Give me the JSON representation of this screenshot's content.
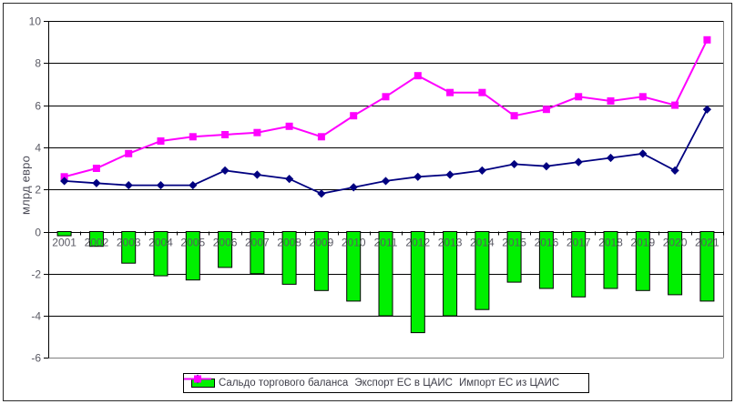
{
  "chart_data": {
    "type": "combo",
    "title": "",
    "ylabel": "млрд евро",
    "xlabel": "",
    "ylim": [
      -6,
      10
    ],
    "ytick_step": 2,
    "grid": true,
    "legend_position": "bottom",
    "categories": [
      "2001",
      "2002",
      "2003",
      "2004",
      "2005",
      "2006",
      "2007",
      "2008",
      "2009",
      "2010",
      "2011",
      "2012",
      "2013",
      "2014",
      "2015",
      "2016",
      "2017",
      "2018",
      "2019",
      "2020",
      "2021"
    ],
    "series": [
      {
        "name": "Сальдо торгового баланса",
        "type": "bar",
        "color": "#00f000",
        "values": [
          -0.2,
          -0.7,
          -1.5,
          -2.1,
          -2.3,
          -1.7,
          -2.0,
          -2.5,
          -2.8,
          -3.3,
          -4.0,
          -4.8,
          -4.0,
          -3.7,
          -2.4,
          -2.7,
          -3.1,
          -2.7,
          -2.8,
          -3.0,
          -3.3
        ]
      },
      {
        "name": "Экспорт ЕС в ЦАИС",
        "type": "line",
        "marker": "diamond",
        "color": "#000080",
        "values": [
          2.4,
          2.3,
          2.2,
          2.2,
          2.2,
          2.9,
          2.7,
          2.5,
          1.8,
          2.1,
          2.4,
          2.6,
          2.7,
          2.9,
          3.2,
          3.1,
          3.3,
          3.5,
          3.7,
          2.9,
          5.8
        ]
      },
      {
        "name": "Импорт ЕС из ЦАИС",
        "type": "line",
        "marker": "square",
        "color": "#ff00ff",
        "values": [
          2.6,
          3.0,
          3.7,
          4.3,
          4.5,
          4.6,
          4.7,
          5.0,
          4.5,
          5.5,
          6.4,
          7.4,
          6.6,
          6.6,
          5.5,
          5.8,
          6.4,
          6.2,
          6.4,
          6.0,
          9.1
        ]
      }
    ]
  },
  "style": {
    "grid_color": "#000000",
    "plot_border_color": "#808080",
    "axis_color": "#000000",
    "tick_label_color": "#5a5a64",
    "background": "#ffffff"
  }
}
